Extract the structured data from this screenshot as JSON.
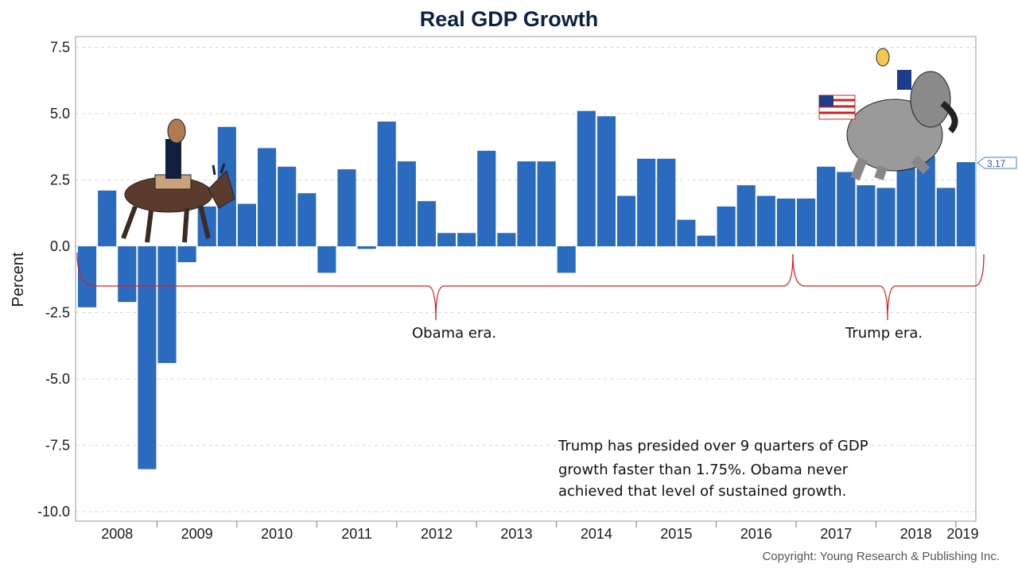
{
  "chart_data": {
    "type": "bar",
    "title": "Real GDP Growth",
    "ylabel": "Percent",
    "xlabel": "",
    "ylim": [
      -10.5,
      8
    ],
    "yticks": [
      "7.5",
      "5.0",
      "2.5",
      "0.0",
      "-2.5",
      "-5.0",
      "-7.5",
      "-10.0"
    ],
    "ytick_values": [
      7.5,
      5,
      2.5,
      0,
      -2.5,
      -5,
      -7.5,
      -10
    ],
    "grid": true,
    "bar_color": "#2a6abf",
    "xtick_labels": [
      "2008",
      "2009",
      "2010",
      "2011",
      "2012",
      "2013",
      "2014",
      "2015",
      "2016",
      "2017",
      "2018",
      "2019"
    ],
    "categories": [
      "2008Q1",
      "2008Q2",
      "2008Q3",
      "2008Q4",
      "2009Q1",
      "2009Q2",
      "2009Q3",
      "2009Q4",
      "2010Q1",
      "2010Q2",
      "2010Q3",
      "2010Q4",
      "2011Q1",
      "2011Q2",
      "2011Q3",
      "2011Q4",
      "2012Q1",
      "2012Q2",
      "2012Q3",
      "2012Q4",
      "2013Q1",
      "2013Q2",
      "2013Q3",
      "2013Q4",
      "2014Q1",
      "2014Q2",
      "2014Q3",
      "2014Q4",
      "2015Q1",
      "2015Q2",
      "2015Q3",
      "2015Q4",
      "2016Q1",
      "2016Q2",
      "2016Q3",
      "2016Q4",
      "2017Q1",
      "2017Q2",
      "2017Q3",
      "2017Q4",
      "2018Q1",
      "2018Q2",
      "2018Q3",
      "2018Q4",
      "2019Q1"
    ],
    "values": [
      -2.3,
      2.1,
      -2.1,
      -8.4,
      -4.4,
      -0.6,
      1.5,
      4.5,
      1.6,
      3.7,
      3.0,
      2.0,
      -1.0,
      2.9,
      -0.1,
      4.7,
      3.2,
      1.7,
      0.5,
      0.5,
      3.6,
      0.5,
      3.2,
      3.2,
      -1.0,
      5.1,
      4.9,
      1.9,
      3.3,
      3.3,
      1.0,
      0.4,
      1.5,
      2.3,
      1.9,
      1.8,
      1.8,
      3.0,
      2.8,
      2.3,
      2.2,
      4.2,
      3.4,
      2.2,
      3.17
    ],
    "last_value_label": "3.17",
    "annotations": {
      "obama_era": "Obama era.",
      "trump_era": "Trump era.",
      "note_lines": [
        "Trump has presided over 9 quarters of GDP",
        "growth faster than 1.75%. Obama never",
        "achieved that level of sustained growth."
      ],
      "bracket_color": "#d62020"
    },
    "copyright": "Copyright: Young Research & Publishing Inc."
  }
}
